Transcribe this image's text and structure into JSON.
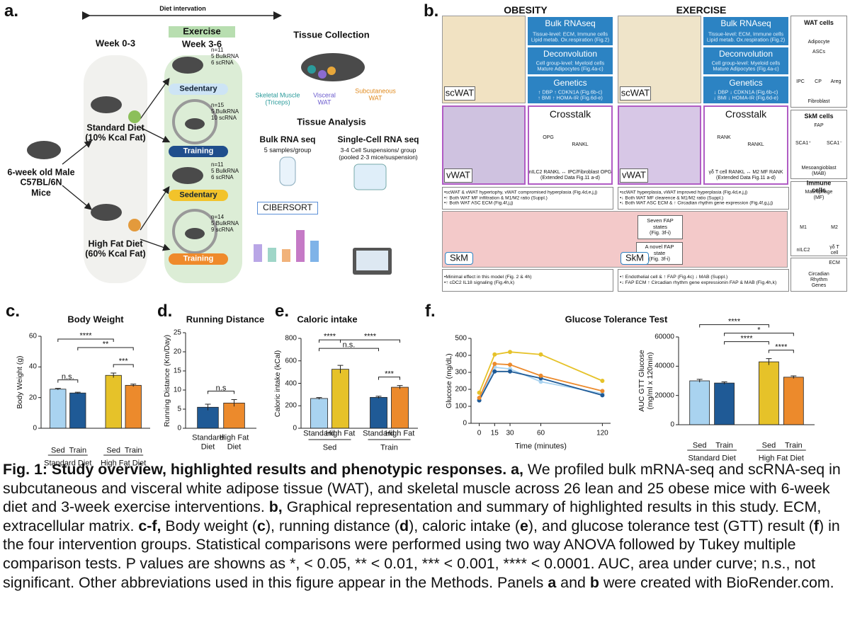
{
  "panel_a": {
    "label": "a.",
    "diet_intervention": "Diet intervation",
    "week_0_3": "Week 0-3",
    "exercise": "Exercise",
    "week_3_6": "Week 3-6",
    "mice": "6-week old  Male\nC57BL/6N\nMice",
    "standard_diet": "Standard Diet\n(10% Kcal Fat)",
    "high_fat_diet": "High Fat Diet\n(60% Kcal Fat)",
    "groups": [
      {
        "n": "n=11\n5 BulkRNA\n6 scRNA",
        "label": "Sedentary"
      },
      {
        "n": "n=15\n5 BulkRNA\n10 scRNA",
        "label": "Training"
      },
      {
        "n": "n=11\n5 BulkRNA\n6 scRNA",
        "label": "Sedentary"
      },
      {
        "n": "n=14\n5 BulkRNA\n9 scRNA",
        "label": "Training"
      }
    ],
    "tissue_collection": "Tissue Collection",
    "skeletal_muscle": "Skeletal Muscle\n(Triceps)",
    "visceral": "Visceral\nWAT",
    "subcutaneous": "Subcutaneous\nWAT",
    "tissue_analysis": "Tissue Analysis",
    "bulk_title": "Bulk RNA seq",
    "bulk_sub": "5 samples/group",
    "cibersort": "CIBERSORT",
    "sc_title": "Single-Cell RNA seq",
    "sc_sub": "3-4 Cell Suspensions/ group\n(pooled 2-3 mice/suspension)"
  },
  "panel_b": {
    "label": "b.",
    "columns": [
      {
        "title": "OBESITY",
        "bulk_title": "Bulk RNAseq",
        "bulk_text": "Tissue-level:  ECM,  Immune cells\nLipid metab.  Ox.respiration (Fig.2)",
        "deconv_title": "Deconvolution",
        "deconv_text": "Cell group-level:  Myeloid cells\nMature Adipocytes (Fig.4a-c)",
        "genetics_title": "Genetics",
        "genetics_text": "↑ DBP   ↑ CDKN1A (Fig.6b-c)\n↑ BMI   ↑ HOMA-IR (Fig.6d-e)",
        "scwat": "scWAT",
        "vwat": "vWAT",
        "crosstalk_title": "Crosstalk",
        "crosstalk_labels": [
          "OPG",
          "RANKL"
        ],
        "crosstalk_text": "nILC2 RANKL ↔ IPC/Fibroblast OPG\n(Extended Data Fig.11 a-d)",
        "bullets": "•scWAT & vWAT hypertophy, vWAT compromised hyperplasia (Fig.4d,e,j,j)\n•↑ Both WAT MF infiltration & M1/M2 ratio (Suppl.)\n•↑ Both WAT ASC ECM (Fig.4f,j,j)",
        "skm": "SkM",
        "skm_bullets": "•Minimal effect in this model (Fig. 2 & 4h)\n•↑ cDC2 IL18 signaling (Fig.4h,k)"
      },
      {
        "title": "EXERCISE",
        "bulk_title": "Bulk RNAseq",
        "bulk_text": "Tissue-level:  ECM,  Immune cells\nLipid metab.  Ox.respiration (Fig.2)",
        "deconv_title": "Deconvolution",
        "deconv_text": "Cell group-level:  Myeloid cells\nMature Adipocytes (Fig.4a-c)",
        "genetics_title": "Genetics",
        "genetics_text": "↓ DBP   ↓ CDKN1A (Fig.6b-c)\n↓ BMI   ↓ HOMA-IR (Fig.6d-e)",
        "scwat": "scWAT",
        "vwat": "vWAT",
        "crosstalk_title": "Crosstalk",
        "crosstalk_labels": [
          "RANK",
          "RANKL"
        ],
        "crosstalk_text": "γδ T cell RANKL ↔ M2 MF RANK\n(Extended Data Fig.11 a-d)",
        "bullets": "•scWAT hyperplasia, vWAT improved hyperplasia (Fig.4d,e,j,j)\n•↓ Both WAT MF clearence & M1/M2 ratio (Suppl.)\n•↓ Both WAT ASC ECM & ↑ Circadian rhythm gene expression (Fig.4f,g,j,j)",
        "skm": "SkM",
        "skm_bullets": "•↑ Endothelial cell & ↑ FAP (Fig.4c) ↓ MAB (Suppl.)\n•↓ FAP ECM ↑ Circadian rhythm gene expressionin FAP & MAB (Fig.4h,k)"
      }
    ],
    "fap_states": "Seven FAP\nstates\n(Fig. 3f-i)",
    "novel_fap": "A novel FAP\nstate\n(Fig. 3f-i)",
    "legend": [
      "WAT cells",
      "Adipocyte",
      "ASCs",
      "IPC",
      "CP",
      "Areg",
      "Fibroblast",
      "SkM cells",
      "FAP",
      "SCA1⁺",
      "SCA1⁻",
      "Mesoangioblast\n(MAB)",
      "Immune  cells",
      "Macrophage (MF)",
      "M1",
      "M2",
      "nILC2",
      "γδ T cell",
      "ECM",
      "Circadian Rhythm Genes"
    ]
  },
  "chart_data": [
    {
      "type": "bar",
      "panel_label": "c.",
      "title": "Body Weight",
      "ylabel": "Body Weight (g)",
      "categories": [
        "Sed",
        "Train",
        "Sed",
        "Train"
      ],
      "groups": [
        "Standard Diet",
        "High Fat Diet"
      ],
      "values": [
        25.5,
        23,
        34.5,
        28
      ],
      "errors": [
        0.5,
        0.5,
        1.5,
        0.8
      ],
      "colors": [
        "#a9d3f0",
        "#1f5a96",
        "#e6c229",
        "#ec8a2c"
      ],
      "ylim": [
        0,
        60
      ],
      "yticks": [
        0,
        20,
        40,
        60
      ],
      "significance": [
        {
          "from": 0,
          "to": 1,
          "label": "n.s."
        },
        {
          "from": 2,
          "to": 3,
          "label": "***"
        },
        {
          "from": 1,
          "to": 3,
          "label": "**"
        },
        {
          "from": 0,
          "to": 2,
          "label": "****"
        }
      ]
    },
    {
      "type": "bar",
      "panel_label": "d.",
      "title": "Running Distance",
      "ylabel": "Running Distance (Km/Day)",
      "categories": [
        "Standard\nDiet",
        "High Fat\nDiet"
      ],
      "values": [
        5.5,
        6.6
      ],
      "errors": [
        0.8,
        0.9
      ],
      "colors": [
        "#1f5a96",
        "#ec8a2c"
      ],
      "ylim": [
        0,
        25
      ],
      "yticks": [
        0,
        5,
        10,
        15,
        20,
        25
      ],
      "significance": [
        {
          "from": 0,
          "to": 1,
          "label": "n.s"
        }
      ]
    },
    {
      "type": "bar",
      "panel_label": "e.",
      "title": "Caloric intake",
      "ylabel": "Caloric intake (kCal)",
      "categories": [
        "Standard",
        "High Fat",
        "Standard",
        "High Fat"
      ],
      "groups": [
        "Sed",
        "Train"
      ],
      "values": [
        265,
        525,
        275,
        365
      ],
      "errors": [
        8,
        35,
        10,
        15
      ],
      "colors": [
        "#a9d3f0",
        "#e6c229",
        "#1f5a96",
        "#ec8a2c"
      ],
      "ylim": [
        0,
        800
      ],
      "yticks": [
        0,
        200,
        400,
        600,
        800
      ],
      "significance": [
        {
          "from": 2,
          "to": 3,
          "label": "***"
        },
        {
          "from": 0,
          "to": 2,
          "label": "n.s."
        },
        {
          "from": 1,
          "to": 3,
          "label": "****"
        },
        {
          "from": 0,
          "to": 1,
          "label": "****"
        }
      ]
    },
    {
      "type": "line",
      "panel_label": "f.",
      "title": "Glucose Tolerance Test",
      "ylabel": "Glucose (mg/dL)",
      "xlabel": "Time (minutes)",
      "x": [
        0,
        15,
        30,
        60,
        120
      ],
      "xlim": [
        -8,
        128
      ],
      "xticks": [
        0,
        15,
        30,
        60,
        120
      ],
      "ylim": [
        0,
        500
      ],
      "yticks": [
        0,
        100,
        200,
        300,
        400,
        500
      ],
      "series": [
        {
          "color": "#a9d3f0",
          "values": [
            140,
            330,
            320,
            245,
            175
          ]
        },
        {
          "color": "#1f5a96",
          "values": [
            135,
            305,
            305,
            265,
            165
          ]
        },
        {
          "color": "#e6c229",
          "values": [
            180,
            405,
            420,
            405,
            250
          ]
        },
        {
          "color": "#ec8a2c",
          "values": [
            150,
            350,
            345,
            280,
            190
          ]
        }
      ]
    },
    {
      "type": "bar",
      "ylabel": "AUC GTT Glucose\n(mg/ml x 120min)",
      "categories": [
        "Sed",
        "Train",
        "Sed",
        "Train"
      ],
      "groups": [
        "Standard Diet",
        "High Fat Diet"
      ],
      "values": [
        30000,
        28500,
        43000,
        32500
      ],
      "errors": [
        1000,
        800,
        2200,
        900
      ],
      "colors": [
        "#a9d3f0",
        "#1f5a96",
        "#e6c229",
        "#ec8a2c"
      ],
      "ylim": [
        0,
        60000
      ],
      "yticks": [
        0,
        20000,
        40000,
        60000
      ],
      "significance": [
        {
          "from": 2,
          "to": 3,
          "label": "****"
        },
        {
          "from": 1,
          "to": 2,
          "label": "****"
        },
        {
          "from": 1,
          "to": 3,
          "label": "*"
        },
        {
          "from": 0,
          "to": 2,
          "label": "****"
        }
      ]
    }
  ],
  "caption": {
    "segments": [
      {
        "text": "Fig. 1: Study overview, highlighted results and phenotypic responses. a,",
        "bold": true
      },
      {
        "text": " We profiled bulk mRNA-seq and scRNA-seq in subcutaneous and visceral white adipose tissue (WAT), and skeletal muscle across 26 lean and 25 obese mice with 6-week diet and 3-week exercise interventions. ",
        "bold": false
      },
      {
        "text": "b,",
        "bold": true
      },
      {
        "text": " Graphical representation and summary of highlighted results in this study. ECM, extracellular matrix. ",
        "bold": false
      },
      {
        "text": "c-f,",
        "bold": true
      },
      {
        "text": " Body weight (",
        "bold": false
      },
      {
        "text": "c",
        "bold": true
      },
      {
        "text": "), running distance (",
        "bold": false
      },
      {
        "text": "d",
        "bold": true
      },
      {
        "text": "), caloric intake (",
        "bold": false
      },
      {
        "text": "e",
        "bold": true
      },
      {
        "text": "), and glucose tolerance test (GTT) result (",
        "bold": false
      },
      {
        "text": "f",
        "bold": true
      },
      {
        "text": ") in the four intervention groups. Statistical comparisons were performed using two way ANOVA followed by Tukey multiple comparison tests. P values are showns as *, < 0.05, ** < 0.01, *** < 0.001, **** < 0.0001. AUC, area under curve; n.s., not significant. Other abbreviations used in this figure appear in the Methods. Panels ",
        "bold": false
      },
      {
        "text": "a",
        "bold": true
      },
      {
        "text": " and ",
        "bold": false
      },
      {
        "text": "b",
        "bold": true
      },
      {
        "text": " were created with BioRender.com.",
        "bold": false
      }
    ]
  }
}
